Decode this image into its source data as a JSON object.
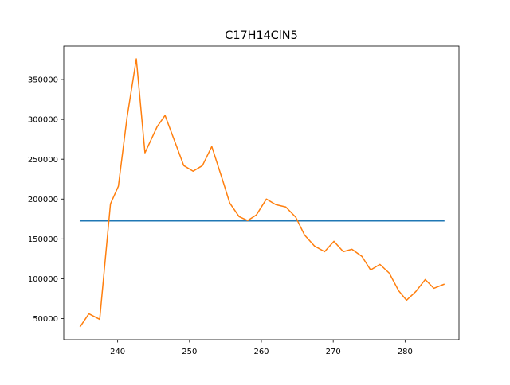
{
  "chart_data": {
    "type": "line",
    "title": "C17H14ClN5",
    "xlabel": "",
    "ylabel": "",
    "xlim": [
      232.5,
      287.5
    ],
    "ylim": [
      23500,
      392000
    ],
    "xticks": [
      240,
      250,
      260,
      270,
      280
    ],
    "yticks": [
      50000,
      100000,
      150000,
      200000,
      250000,
      300000,
      350000
    ],
    "grid": false,
    "series": [
      {
        "color": "#1f77b4",
        "x": [
          234.8,
          285.4
        ],
        "y": [
          172500,
          172500
        ]
      },
      {
        "color": "#ff7f0e",
        "x": [
          234.8,
          236.0,
          237.5,
          239.0,
          240.1,
          241.3,
          242.6,
          243.8,
          245.5,
          246.6,
          248.0,
          249.2,
          250.5,
          251.8,
          253.1,
          254.6,
          255.6,
          256.9,
          258.1,
          259.3,
          260.7,
          262.0,
          263.4,
          264.8,
          266.0,
          267.4,
          268.8,
          270.1,
          271.4,
          272.6,
          274.0,
          275.2,
          276.5,
          277.8,
          279.1,
          280.2,
          281.5,
          282.8,
          284.0,
          285.4
        ],
        "y": [
          40000,
          56000,
          49000,
          194000,
          216000,
          302000,
          376000,
          258000,
          291000,
          305000,
          271000,
          242000,
          235000,
          242000,
          266000,
          224000,
          195000,
          178000,
          173000,
          180000,
          200000,
          193000,
          190000,
          177000,
          155000,
          141000,
          134000,
          147000,
          134000,
          137000,
          128000,
          111000,
          118000,
          107000,
          85000,
          73000,
          84000,
          99000,
          88000,
          93000
        ]
      }
    ]
  }
}
